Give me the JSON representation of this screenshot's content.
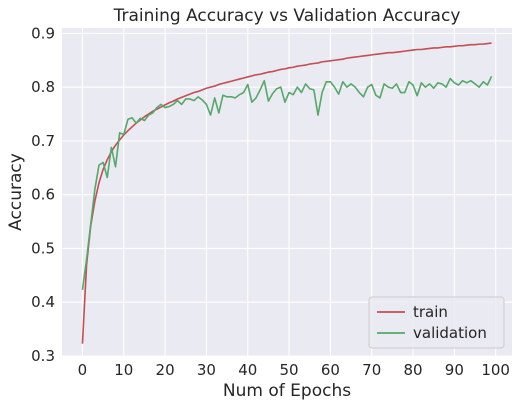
{
  "chart_data": {
    "type": "line",
    "title": "Training Accuracy vs Validation Accuracy",
    "xlabel": "Num of Epochs",
    "ylabel": "Accuracy",
    "xlim": [
      -4.95,
      103.95
    ],
    "ylim": [
      0.3,
      0.91
    ],
    "xticks": [
      0,
      10,
      20,
      30,
      40,
      50,
      60,
      70,
      80,
      90,
      100
    ],
    "yticks": [
      0.3,
      0.4,
      0.5,
      0.6,
      0.7,
      0.8,
      0.9
    ],
    "grid": true,
    "legend_position": "lower-right",
    "series": [
      {
        "name": "train",
        "color": "#c44e52",
        "x": [
          0,
          1,
          2,
          3,
          4,
          5,
          6,
          7,
          8,
          9,
          10,
          11,
          12,
          13,
          14,
          15,
          16,
          17,
          18,
          19,
          20,
          21,
          22,
          23,
          24,
          25,
          26,
          27,
          28,
          29,
          30,
          31,
          32,
          33,
          34,
          35,
          36,
          37,
          38,
          39,
          40,
          41,
          42,
          43,
          44,
          45,
          46,
          47,
          48,
          49,
          50,
          51,
          52,
          53,
          54,
          55,
          56,
          57,
          58,
          59,
          60,
          61,
          62,
          63,
          64,
          65,
          66,
          67,
          68,
          69,
          70,
          71,
          72,
          73,
          74,
          75,
          76,
          77,
          78,
          79,
          80,
          81,
          82,
          83,
          84,
          85,
          86,
          87,
          88,
          89,
          90,
          91,
          92,
          93,
          94,
          95,
          96,
          97,
          98,
          99
        ],
        "values": [
          0.323,
          0.47,
          0.542,
          0.588,
          0.622,
          0.647,
          0.665,
          0.68,
          0.692,
          0.702,
          0.711,
          0.719,
          0.726,
          0.733,
          0.739,
          0.745,
          0.75,
          0.755,
          0.759,
          0.763,
          0.767,
          0.771,
          0.774,
          0.778,
          0.781,
          0.784,
          0.787,
          0.79,
          0.792,
          0.795,
          0.798,
          0.8,
          0.802,
          0.805,
          0.807,
          0.809,
          0.811,
          0.813,
          0.815,
          0.817,
          0.819,
          0.821,
          0.823,
          0.824,
          0.826,
          0.828,
          0.829,
          0.831,
          0.833,
          0.834,
          0.836,
          0.837,
          0.839,
          0.84,
          0.841,
          0.843,
          0.844,
          0.845,
          0.847,
          0.848,
          0.849,
          0.85,
          0.851,
          0.852,
          0.854,
          0.855,
          0.856,
          0.857,
          0.858,
          0.859,
          0.86,
          0.861,
          0.862,
          0.863,
          0.864,
          0.864,
          0.865,
          0.866,
          0.867,
          0.868,
          0.869,
          0.87,
          0.87,
          0.871,
          0.872,
          0.873,
          0.873,
          0.874,
          0.875,
          0.875,
          0.876,
          0.877,
          0.877,
          0.878,
          0.879,
          0.879,
          0.88,
          0.88,
          0.881,
          0.882
        ]
      },
      {
        "name": "validation",
        "color": "#55a868",
        "x": [
          0,
          1,
          2,
          3,
          4,
          5,
          6,
          7,
          8,
          9,
          10,
          11,
          12,
          13,
          14,
          15,
          16,
          17,
          18,
          19,
          20,
          21,
          22,
          23,
          24,
          25,
          26,
          27,
          28,
          29,
          30,
          31,
          32,
          33,
          34,
          35,
          36,
          37,
          38,
          39,
          40,
          41,
          42,
          43,
          44,
          45,
          46,
          47,
          48,
          49,
          50,
          51,
          52,
          53,
          54,
          55,
          56,
          57,
          58,
          59,
          60,
          61,
          62,
          63,
          64,
          65,
          66,
          67,
          68,
          69,
          70,
          71,
          72,
          73,
          74,
          75,
          76,
          77,
          78,
          79,
          80,
          81,
          82,
          83,
          84,
          85,
          86,
          87,
          88,
          89,
          90,
          91,
          92,
          93,
          94,
          95,
          96,
          97,
          98,
          99
        ],
        "values": [
          0.423,
          0.48,
          0.545,
          0.61,
          0.655,
          0.66,
          0.632,
          0.688,
          0.652,
          0.715,
          0.712,
          0.74,
          0.743,
          0.733,
          0.742,
          0.738,
          0.748,
          0.752,
          0.762,
          0.768,
          0.762,
          0.764,
          0.768,
          0.775,
          0.768,
          0.778,
          0.778,
          0.775,
          0.782,
          0.776,
          0.768,
          0.748,
          0.78,
          0.752,
          0.785,
          0.782,
          0.782,
          0.78,
          0.786,
          0.79,
          0.805,
          0.772,
          0.78,
          0.795,
          0.812,
          0.774,
          0.788,
          0.797,
          0.8,
          0.772,
          0.79,
          0.786,
          0.8,
          0.79,
          0.806,
          0.797,
          0.795,
          0.748,
          0.79,
          0.81,
          0.81,
          0.8,
          0.787,
          0.81,
          0.8,
          0.806,
          0.8,
          0.79,
          0.782,
          0.8,
          0.805,
          0.785,
          0.78,
          0.806,
          0.8,
          0.798,
          0.806,
          0.79,
          0.79,
          0.81,
          0.804,
          0.784,
          0.808,
          0.8,
          0.806,
          0.798,
          0.808,
          0.806,
          0.8,
          0.816,
          0.808,
          0.804,
          0.812,
          0.808,
          0.812,
          0.806,
          0.8,
          0.81,
          0.804,
          0.82
        ]
      }
    ]
  }
}
